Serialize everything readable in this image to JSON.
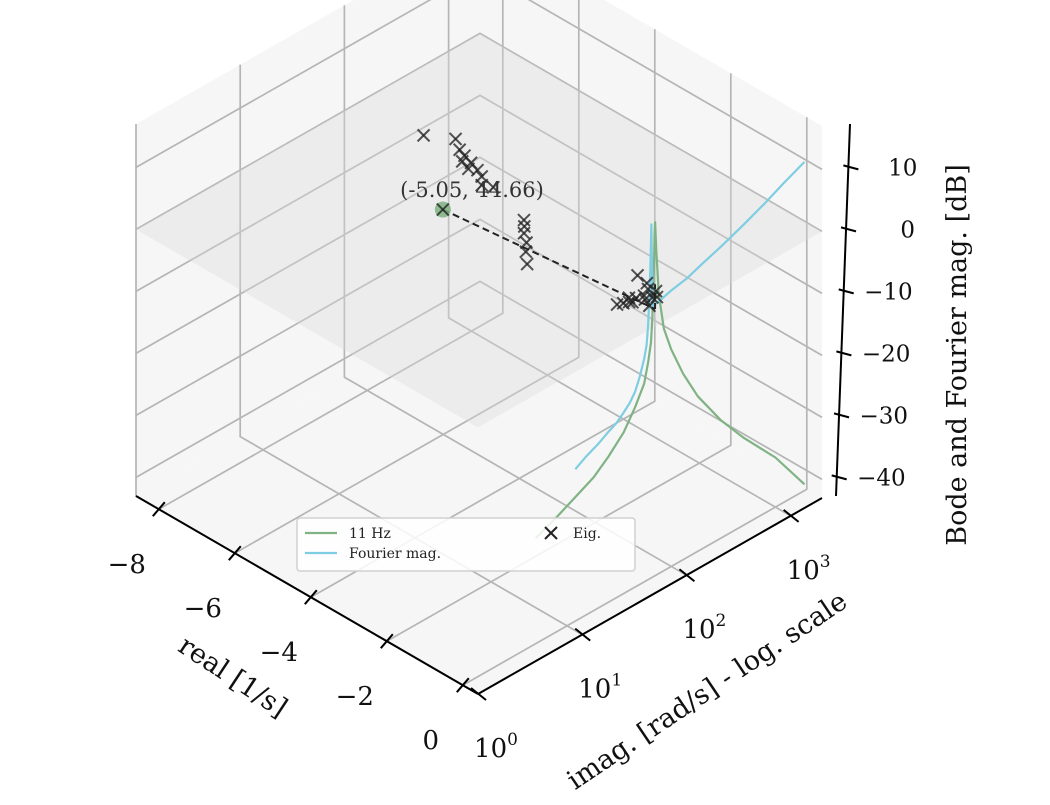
{
  "chart_data": {
    "type": "scatter",
    "projection": "3d",
    "x_axis": {
      "label": "real [1/s]",
      "ticks": [
        -8,
        -6,
        -4,
        -2,
        0
      ],
      "tick_labels": [
        "−8",
        "−6",
        "−4",
        "−2",
        "0"
      ],
      "range": [
        -8.6,
        0.4
      ]
    },
    "y_axis": {
      "label": "imag. [rad/s] - log. scale",
      "scale": "log",
      "ticks": [
        1,
        10,
        100,
        1000
      ],
      "tick_labels": [
        "10",
        "10",
        "10",
        "10"
      ],
      "tick_exponents": [
        "0",
        "1",
        "2",
        "3"
      ],
      "range": [
        1,
        2000
      ]
    },
    "z_axis": {
      "label": "Bode and Fourier mag. [dB]",
      "ticks": [
        -40,
        -30,
        -20,
        -10,
        0,
        10
      ],
      "tick_labels": [
        "−40",
        "−30",
        "−20",
        "−10",
        "0",
        "10"
      ],
      "range": [
        -43,
        17
      ]
    },
    "grid": true,
    "annotation": {
      "text": "(-5.05, 44.66)",
      "x": -5.05,
      "y": 44.66,
      "z": 0
    },
    "legend": {
      "placement": "lower-center",
      "entries": [
        {
          "label": "11 Hz",
          "color": "#7fb383",
          "marker": "line"
        },
        {
          "label": "Fourier mag.",
          "color": "#7ecde2",
          "marker": "line"
        },
        {
          "label": "Eig.",
          "color": "#222222",
          "marker": "x"
        }
      ]
    },
    "series": [
      {
        "name": "11 Hz",
        "type": "line",
        "color": "#7fb383",
        "x": 0,
        "y": [
          5,
          8,
          12,
          18,
          25,
          35,
          45,
          55,
          60,
          64,
          66,
          67.5,
          68.5,
          69.2,
          70,
          72,
          76,
          85,
          100,
          130,
          180,
          300,
          500,
          1000,
          1900
        ],
        "z": [
          -26,
          -24.5,
          -23,
          -21.5,
          -19.5,
          -17,
          -14,
          -11,
          -8,
          -5,
          -1,
          4,
          8,
          12,
          14,
          9,
          2,
          -4,
          -8,
          -13,
          -18,
          -24,
          -29,
          -35,
          -42
        ]
      },
      {
        "name": "Fourier mag.",
        "type": "line",
        "color": "#7ecde2",
        "x": 0,
        "y": [
          12,
          15,
          20,
          25,
          30,
          35,
          40,
          45,
          50,
          55,
          58,
          60,
          62,
          63.5,
          64.5,
          65,
          66,
          67,
          70,
          80,
          100,
          140,
          200,
          300,
          500,
          800,
          1200,
          1900
        ],
        "z": [
          -18.5,
          -17.5,
          -16.5,
          -15.5,
          -14.8,
          -13.8,
          -12.8,
          -11.5,
          -9.5,
          -7,
          -5,
          -2,
          3,
          9,
          14,
          10,
          2,
          0.5,
          0.8,
          1,
          1.5,
          2,
          3,
          4,
          5.5,
          7,
          8.5,
          10
        ]
      },
      {
        "name": "Eig.",
        "type": "scatter",
        "marker": "x",
        "color": "#222222",
        "x": [
          -0.6,
          -0.55,
          -0.5,
          -0.45,
          -0.6,
          -0.5,
          -0.35,
          -0.45,
          -0.3,
          -0.25,
          -0.55,
          -0.4,
          -0.7,
          -1.0,
          -0.15,
          -2.7,
          -3.0,
          -3.2,
          -3.45,
          -3.6,
          -3.75,
          -4.9,
          -5.1,
          -5.3,
          -5.5,
          -5.65,
          -5.75,
          -5.9,
          -6.0,
          -6.2,
          -6.5,
          -7.0,
          -5.05
        ],
        "y": [
          50,
          55,
          60,
          62,
          65,
          70,
          75,
          80,
          85,
          90,
          95,
          100,
          105,
          110,
          70,
          40,
          50,
          60,
          70,
          80,
          90,
          120,
          110,
          130,
          140,
          130,
          150,
          140,
          160,
          170,
          200,
          150,
          44.66
        ],
        "z": [
          0,
          0,
          0,
          0,
          0,
          0,
          0,
          0,
          0,
          0,
          0,
          0,
          0,
          0,
          0,
          0,
          0,
          0,
          0,
          0,
          0,
          0,
          0,
          0,
          0,
          0,
          0,
          0,
          0,
          0,
          0,
          0,
          0
        ]
      }
    ]
  }
}
